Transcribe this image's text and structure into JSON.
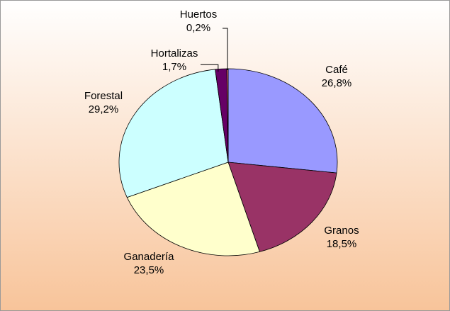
{
  "chart_data": {
    "type": "pie",
    "categories": [
      "Café",
      "Granos",
      "Ganadería",
      "Forestal",
      "Hortalizas",
      "Huertos"
    ],
    "values": [
      26.8,
      18.5,
      23.5,
      29.2,
      1.7,
      0.2
    ],
    "value_labels": [
      "26,8%",
      "18,5%",
      "23,5%",
      "29,2%",
      "1,7%",
      "0,2%"
    ],
    "colors": [
      "#9999ff",
      "#993366",
      "#ffffcc",
      "#ccffff",
      "#660066",
      "#ff8080"
    ]
  }
}
